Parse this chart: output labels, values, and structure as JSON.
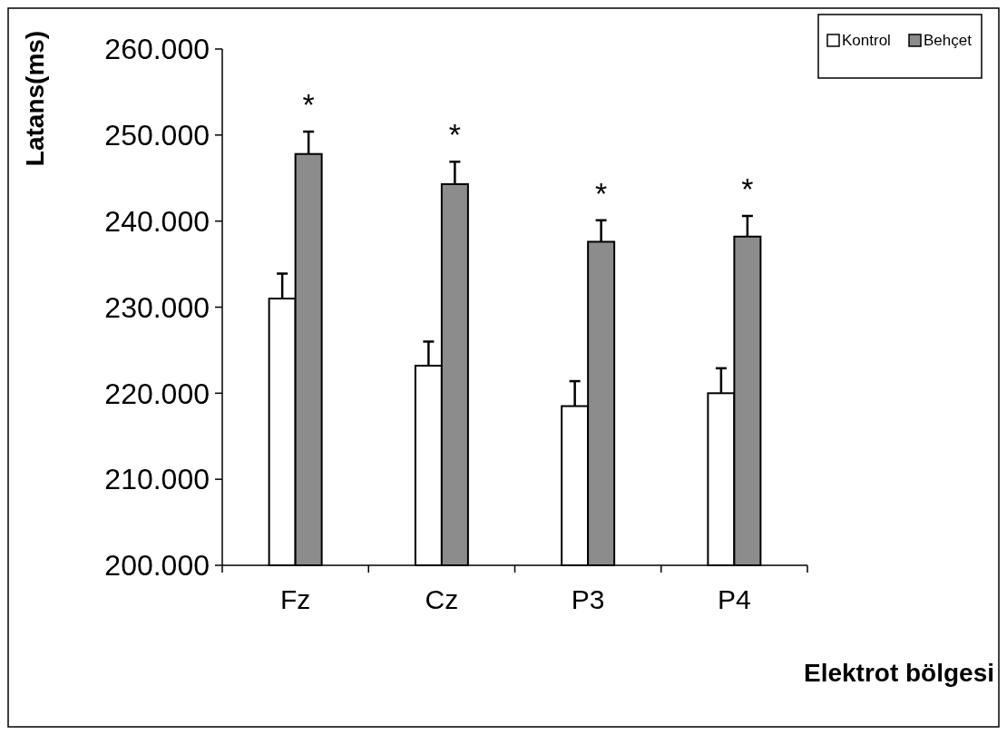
{
  "chart_data": {
    "type": "bar",
    "ylabel": "Latans(ms)",
    "xlabel": "Elektrot bölgesi",
    "categories": [
      "Fz",
      "Cz",
      "P3",
      "P4"
    ],
    "series": [
      {
        "name": "Kontrol",
        "color": "#ffffff",
        "values": [
          231.0,
          223.2,
          218.5,
          220.0
        ],
        "errors": [
          [
            231.0,
            233.9
          ],
          [
            223.2,
            226.0
          ],
          [
            218.5,
            221.4
          ],
          [
            220.0,
            222.9
          ]
        ]
      },
      {
        "name": "Behçet",
        "color": "#8c8c8c",
        "values": [
          247.8,
          244.3,
          237.6,
          238.2
        ],
        "errors": [
          [
            247.8,
            250.4
          ],
          [
            244.3,
            246.9
          ],
          [
            237.6,
            240.1
          ],
          [
            238.2,
            240.6
          ]
        ]
      }
    ],
    "ylim": [
      200,
      260
    ],
    "yticks": [
      {
        "value": 200,
        "label": "200.000"
      },
      {
        "value": 210,
        "label": "210.000"
      },
      {
        "value": 220,
        "label": "220.000"
      },
      {
        "value": 230,
        "label": "230.000"
      },
      {
        "value": 240,
        "label": "240.000"
      },
      {
        "value": 250,
        "label": "250.000"
      },
      {
        "value": 260,
        "label": "260.000"
      }
    ],
    "annotations": [
      "*",
      "*",
      "*",
      "*"
    ],
    "legend": "top right",
    "grid": false
  }
}
